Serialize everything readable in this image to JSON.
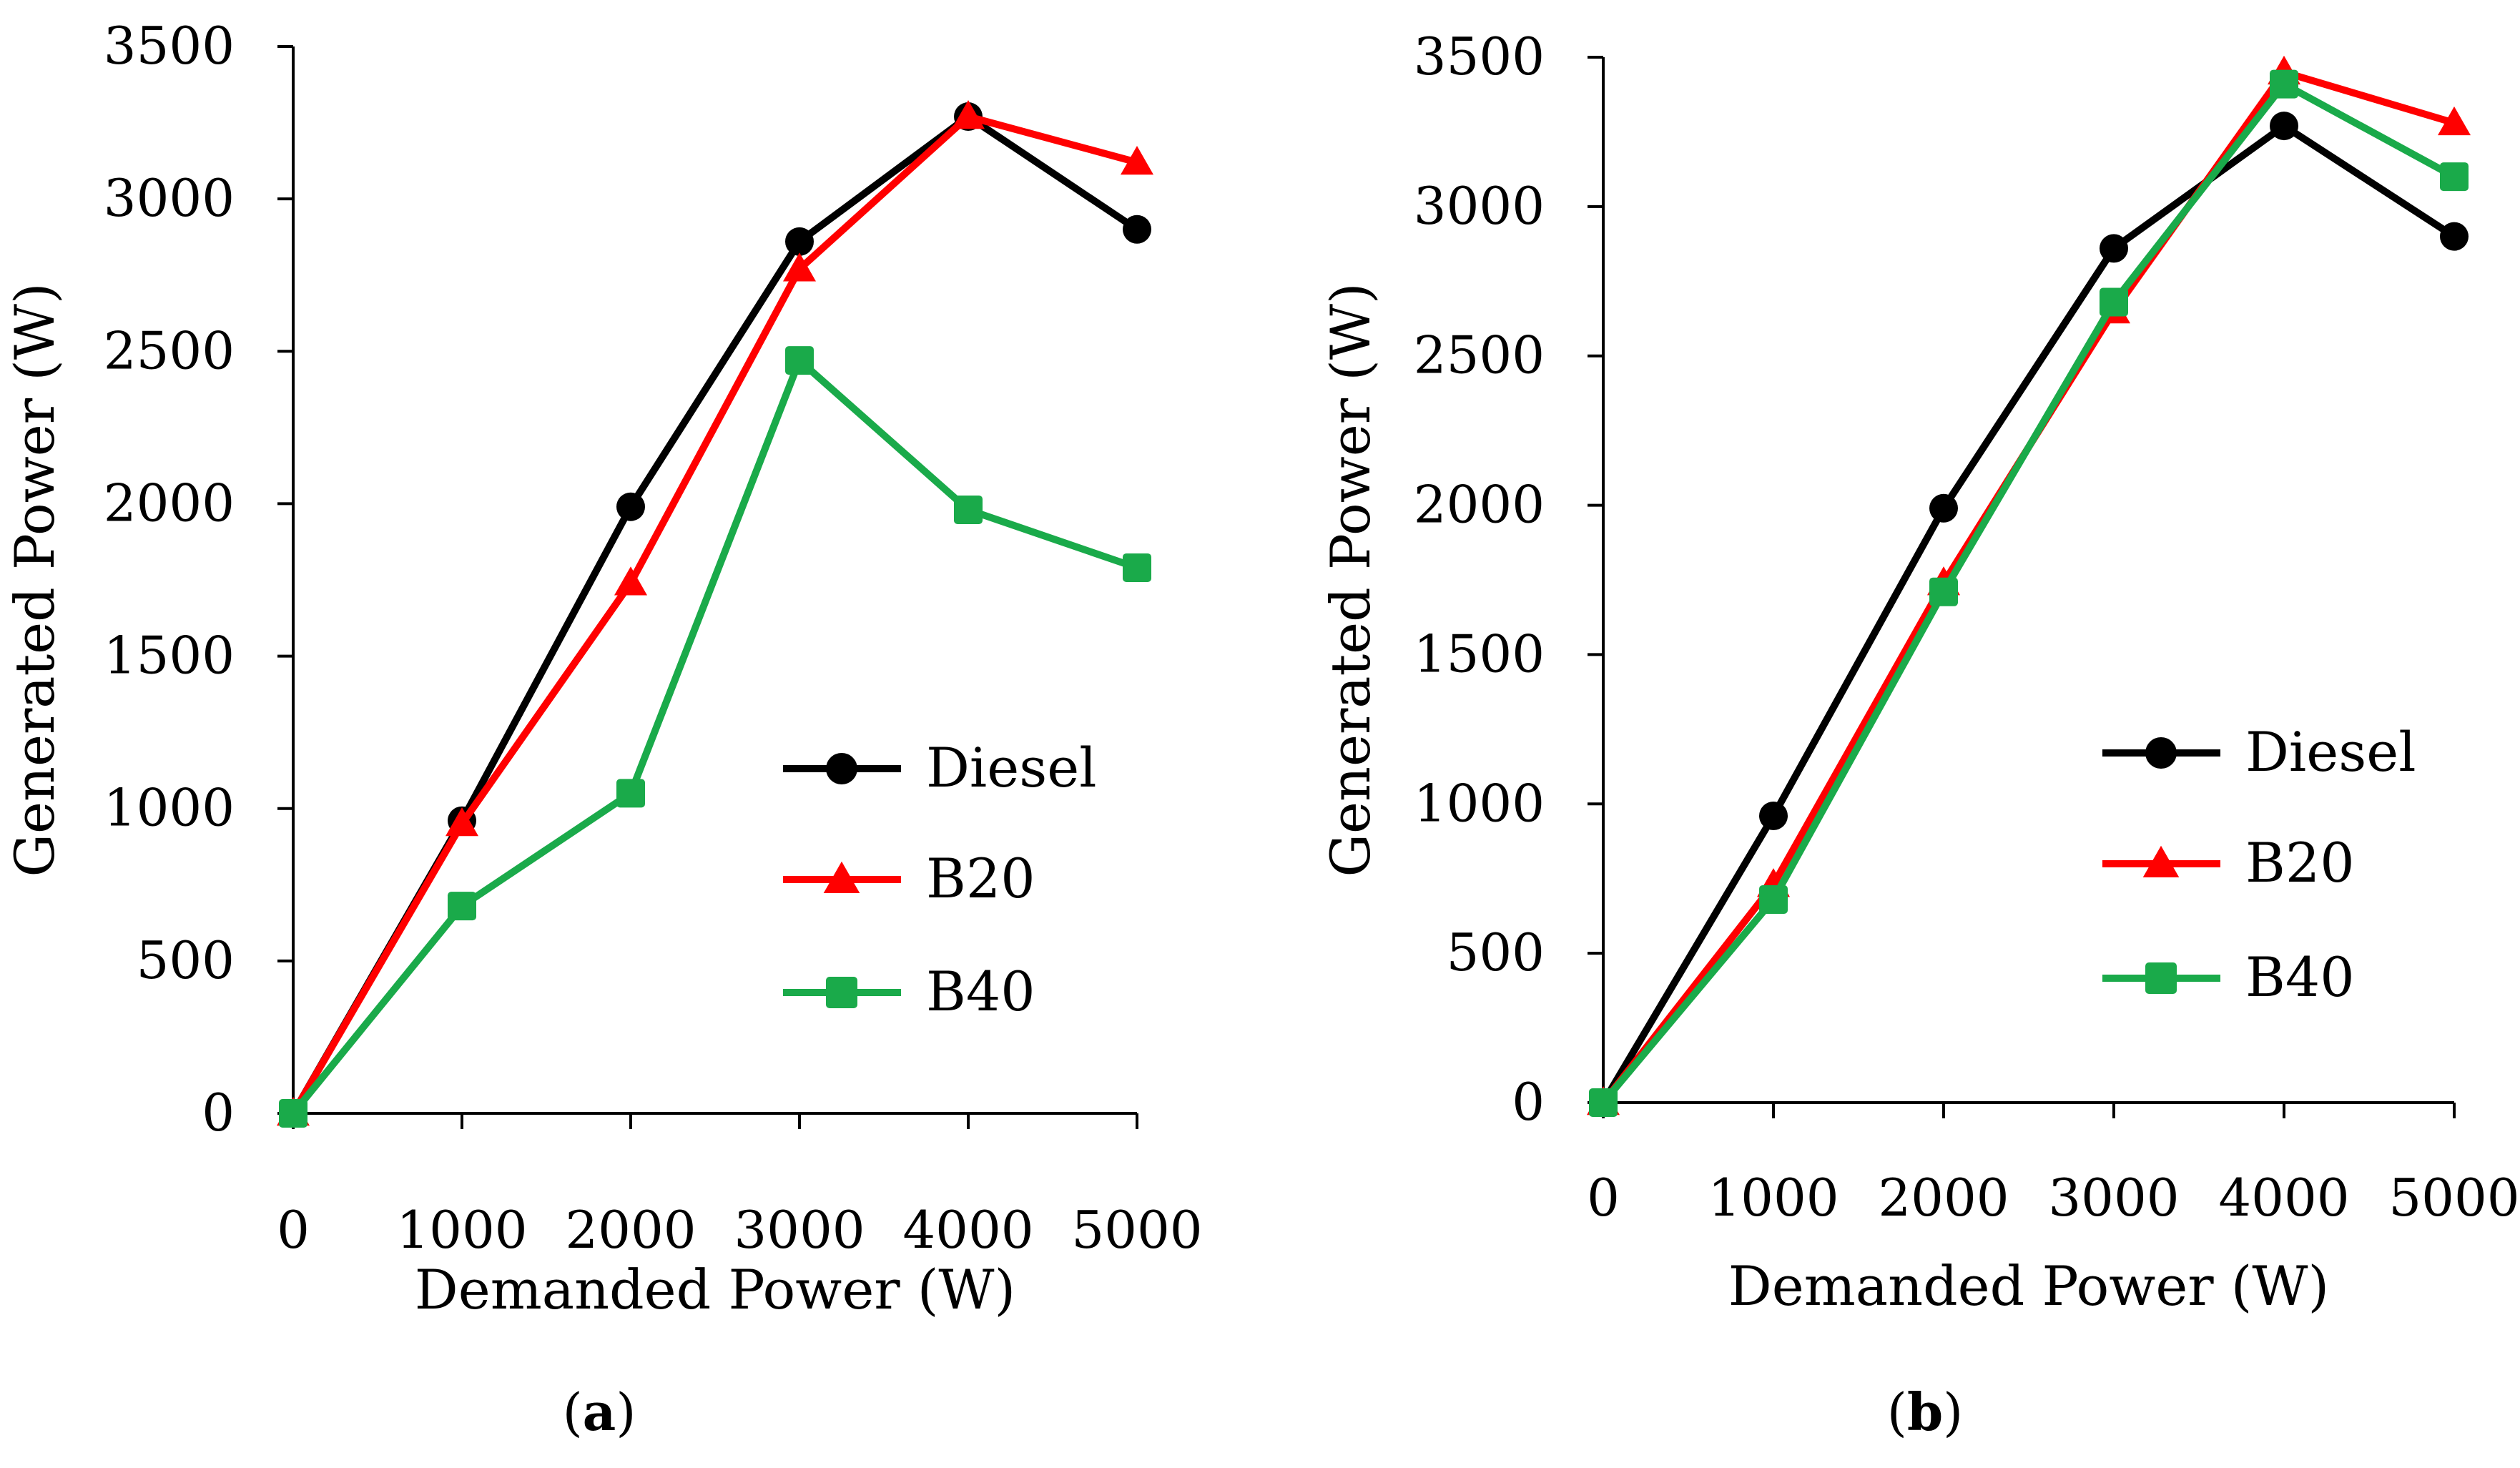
{
  "chart_data": [
    {
      "type": "line",
      "panel_label": "a",
      "xlabel": "Demanded Power (W)",
      "ylabel": "Generated Power (W)",
      "xlim": [
        0,
        5000
      ],
      "ylim": [
        0,
        3500
      ],
      "x_ticks": [
        0,
        1000,
        2000,
        3000,
        4000,
        5000
      ],
      "y_ticks": [
        0,
        500,
        1000,
        1500,
        2000,
        2500,
        3000,
        3500
      ],
      "grid": false,
      "legend_position": "center-right",
      "x": [
        0,
        1000,
        2000,
        3000,
        4000,
        5000
      ],
      "series": [
        {
          "name": "Diesel",
          "marker": "circle",
          "color": "#000000",
          "values": [
            0,
            960,
            1990,
            2860,
            3270,
            2900
          ]
        },
        {
          "name": "B20",
          "marker": "triangle",
          "color": "#ff0000",
          "values": [
            0,
            950,
            1740,
            2770,
            3270,
            3120
          ]
        },
        {
          "name": "B40",
          "marker": "square",
          "color": "#1aaa4a",
          "values": [
            0,
            680,
            1050,
            2470,
            1980,
            1790
          ]
        }
      ]
    },
    {
      "type": "line",
      "panel_label": "b",
      "xlabel": "Demanded Power (W)",
      "ylabel": "Generated Power (W)",
      "xlim": [
        0,
        5000
      ],
      "ylim": [
        0,
        3500
      ],
      "x_ticks": [
        0,
        1000,
        2000,
        3000,
        4000,
        5000
      ],
      "y_ticks": [
        0,
        500,
        1000,
        1500,
        2000,
        2500,
        3000,
        3500
      ],
      "grid": false,
      "legend_position": "center-right",
      "x": [
        0,
        1000,
        2000,
        3000,
        4000,
        5000
      ],
      "series": [
        {
          "name": "Diesel",
          "marker": "circle",
          "color": "#000000",
          "values": [
            0,
            960,
            1990,
            2860,
            3270,
            2900
          ]
        },
        {
          "name": "B20",
          "marker": "triangle",
          "color": "#ff0000",
          "values": [
            0,
            730,
            1740,
            2650,
            3450,
            3280
          ]
        },
        {
          "name": "B40",
          "marker": "square",
          "color": "#1aaa4a",
          "values": [
            0,
            680,
            1710,
            2680,
            3410,
            3100
          ]
        }
      ]
    }
  ]
}
